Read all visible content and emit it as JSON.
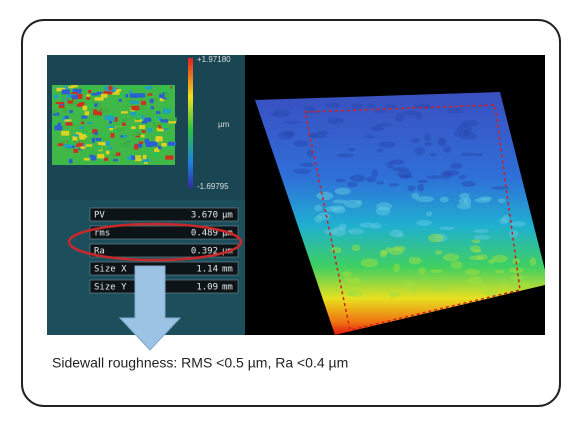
{
  "colorbar": {
    "max": "+1.97180",
    "unit": "µm",
    "min": "-1.69795"
  },
  "table": {
    "rows": [
      [
        "PV",
        "3.670",
        "µm"
      ],
      [
        "rms",
        "0.489",
        "µm"
      ],
      [
        "Ra",
        "0.392",
        "µm"
      ],
      [
        "Size X",
        "1.14",
        "mm"
      ],
      [
        "Size Y",
        "1.09",
        "mm"
      ]
    ]
  },
  "caption": "Sidewall roughness: RMS <0.5 µm, Ra <0.4 µm"
}
